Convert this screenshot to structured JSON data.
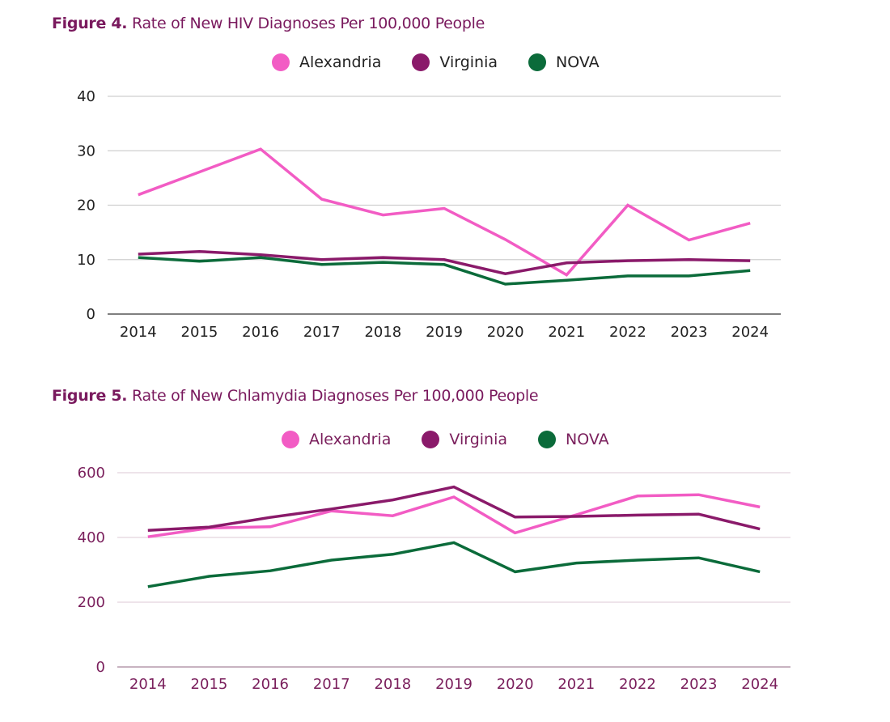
{
  "chart_data": [
    {
      "type": "line",
      "figure_label": "Figure 4.",
      "title": "Rate of New HIV Diagnoses Per 100,000 People",
      "xlabel": "",
      "ylabel": "",
      "categories": [
        "2014",
        "2015",
        "2016",
        "2017",
        "2018",
        "2019",
        "2020",
        "2021",
        "2022",
        "2023",
        "2024"
      ],
      "ylim": [
        0,
        40
      ],
      "yticks": [
        "0",
        "10",
        "20",
        "30",
        "40"
      ],
      "grid": true,
      "legend_position": "top",
      "text_color": "#222222",
      "series": [
        {
          "name": "Alexandria",
          "color": "#f25cc4",
          "values": [
            21.9,
            26.1,
            30.3,
            21.1,
            18.2,
            19.4,
            13.7,
            7.2,
            20.0,
            13.6,
            16.7
          ]
        },
        {
          "name": "Virginia",
          "color": "#8a1a6a",
          "values": [
            11.0,
            11.5,
            10.9,
            10.0,
            10.4,
            10.0,
            7.4,
            9.4,
            9.8,
            10.0,
            9.8
          ]
        },
        {
          "name": "NOVA",
          "color": "#0b6b3a",
          "values": [
            10.4,
            9.7,
            10.4,
            9.1,
            9.5,
            9.1,
            5.5,
            6.2,
            7.0,
            7.0,
            8.0
          ]
        }
      ]
    },
    {
      "type": "line",
      "figure_label": "Figure 5.",
      "title": "Rate of New Chlamydia Diagnoses Per 100,000 People",
      "xlabel": "",
      "ylabel": "",
      "categories": [
        "2014",
        "2015",
        "2016",
        "2017",
        "2018",
        "2019",
        "2020",
        "2021",
        "2022",
        "2023",
        "2024"
      ],
      "ylim": [
        0,
        600
      ],
      "yticks": [
        "0",
        "200",
        "400",
        "600"
      ],
      "grid": true,
      "legend_position": "top",
      "text_color": "#7a1f5c",
      "series": [
        {
          "name": "Alexandria",
          "color": "#f25cc4",
          "values": [
            402,
            429,
            433,
            482,
            467,
            525,
            414,
            470,
            528,
            532,
            494
          ]
        },
        {
          "name": "Virginia",
          "color": "#8a1a6a",
          "values": [
            422,
            432,
            462,
            488,
            516,
            556,
            463,
            465,
            469,
            472,
            426
          ]
        },
        {
          "name": "NOVA",
          "color": "#0b6b3a",
          "values": [
            248,
            280,
            297,
            330,
            348,
            384,
            294,
            321,
            330,
            337,
            294
          ]
        }
      ]
    }
  ]
}
